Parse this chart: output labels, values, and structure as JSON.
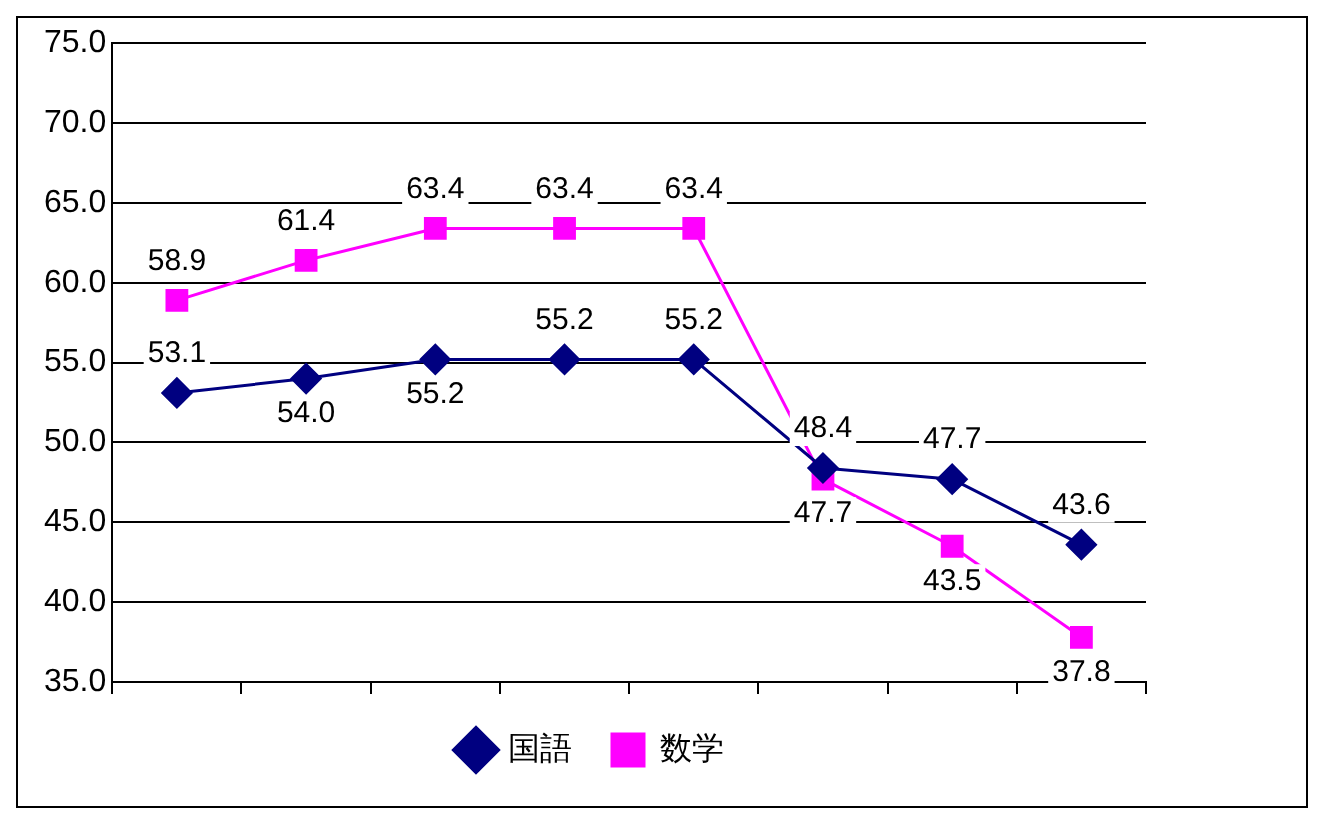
{
  "chart_data": {
    "type": "line",
    "categories": [
      null,
      null,
      null,
      null,
      null,
      null,
      null,
      null
    ],
    "series": [
      {
        "name": "国語",
        "color": "#000080",
        "marker": "diamond",
        "values": [
          53.1,
          54.0,
          55.2,
          55.2,
          55.2,
          48.4,
          47.7,
          43.6
        ],
        "value_labels": [
          "53.1",
          "54.0",
          "55.2",
          "55.2",
          "55.2",
          "48.4",
          "47.7",
          "43.6"
        ]
      },
      {
        "name": "数学",
        "color": "#ff00ff",
        "marker": "square",
        "values": [
          58.9,
          61.4,
          63.4,
          63.4,
          63.4,
          47.7,
          43.5,
          37.8
        ],
        "value_labels": [
          "58.9",
          "61.4",
          "63.4",
          "63.4",
          "63.4",
          "47.7",
          "43.5",
          "37.8"
        ]
      }
    ],
    "ylim": [
      35,
      75
    ],
    "yticks": [
      {
        "value": 35,
        "label": "35.0"
      },
      {
        "value": 40,
        "label": "40.0"
      },
      {
        "value": 45,
        "label": "45.0"
      },
      {
        "value": 50,
        "label": "50.0"
      },
      {
        "value": 55,
        "label": "55.0"
      },
      {
        "value": 60,
        "label": "60.0"
      },
      {
        "value": 65,
        "label": "65.0"
      },
      {
        "value": 70,
        "label": "70.0"
      },
      {
        "value": 75,
        "label": "75.0"
      }
    ],
    "grid": "y",
    "legend": "bottom",
    "line_style": "solid"
  }
}
